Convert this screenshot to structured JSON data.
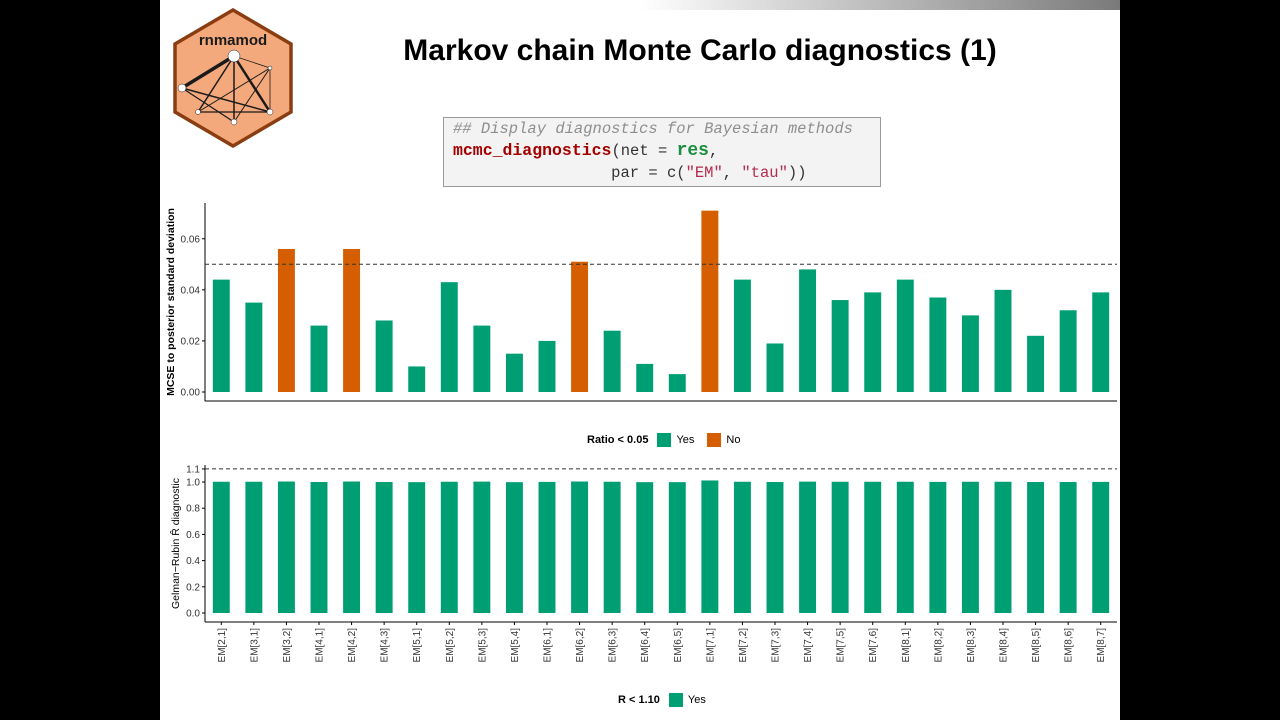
{
  "slide": {
    "title": "Markov chain Monte Carlo diagnostics (1)",
    "logo_text": "rnmamod"
  },
  "code": {
    "comment": "## Display diagnostics for Bayesian methods",
    "function": "mcmc_diagnostics",
    "open": "(net = ",
    "object": "res",
    "comma": ",",
    "indent": "                 ",
    "par_open": "par = c(",
    "arg1": "\"EM\"",
    "sep": ", ",
    "arg2": "\"tau\"",
    "close": "))"
  },
  "colors": {
    "yes": "#009e73",
    "no": "#d55e00",
    "axis": "#000000",
    "ref_line": "#333333"
  },
  "chart_data": [
    {
      "type": "bar",
      "ylabel": "MCSE to posterior standard deviation",
      "ylim": [
        0,
        0.074
      ],
      "yticks": [
        0.0,
        0.02,
        0.04,
        0.06
      ],
      "ytick_labels": [
        "0.00",
        "0.02",
        "0.04",
        "0.06"
      ],
      "reference_line": 0.05,
      "categories": [
        "EM[2,1]",
        "EM[3,1]",
        "EM[3,2]",
        "EM[4,1]",
        "EM[4,2]",
        "EM[4,3]",
        "EM[5,1]",
        "EM[5,2]",
        "EM[5,3]",
        "EM[5,4]",
        "EM[6,1]",
        "EM[6,2]",
        "EM[6,3]",
        "EM[6,4]",
        "EM[6,5]",
        "EM[7,1]",
        "EM[7,2]",
        "EM[7,3]",
        "EM[7,4]",
        "EM[7,5]",
        "EM[7,6]",
        "EM[8,1]",
        "EM[8,2]",
        "EM[8,3]",
        "EM[8,4]",
        "EM[8,5]",
        "EM[8,6]",
        "EM[8,7]"
      ],
      "values": [
        0.044,
        0.035,
        0.056,
        0.026,
        0.056,
        0.028,
        0.01,
        0.043,
        0.026,
        0.015,
        0.02,
        0.051,
        0.024,
        0.011,
        0.007,
        0.071,
        0.044,
        0.019,
        0.048,
        0.036,
        0.039,
        0.044,
        0.037,
        0.03,
        0.04,
        0.022,
        0.032,
        0.039
      ],
      "groups": [
        "Yes",
        "Yes",
        "No",
        "Yes",
        "No",
        "Yes",
        "Yes",
        "Yes",
        "Yes",
        "Yes",
        "Yes",
        "No",
        "Yes",
        "Yes",
        "Yes",
        "No",
        "Yes",
        "Yes",
        "Yes",
        "Yes",
        "Yes",
        "Yes",
        "Yes",
        "Yes",
        "Yes",
        "Yes",
        "Yes",
        "Yes"
      ],
      "legend": {
        "title": "Ratio < 0.05",
        "items": [
          "Yes",
          "No"
        ],
        "position": "bottom"
      }
    },
    {
      "type": "bar",
      "ylabel": "Gelman−Rubin R̂ diagnostic",
      "ylim": [
        0,
        1.13
      ],
      "yticks": [
        0.0,
        0.2,
        0.4,
        0.6,
        0.8,
        1.0,
        1.1
      ],
      "ytick_labels": [
        "0.0",
        "0.2",
        "0.4",
        "0.6",
        "0.8",
        "1.0",
        "1.1"
      ],
      "reference_line": 1.1,
      "categories": [
        "EM[2,1]",
        "EM[3,1]",
        "EM[3,2]",
        "EM[4,1]",
        "EM[4,2]",
        "EM[4,3]",
        "EM[5,1]",
        "EM[5,2]",
        "EM[5,3]",
        "EM[5,4]",
        "EM[6,1]",
        "EM[6,2]",
        "EM[6,3]",
        "EM[6,4]",
        "EM[6,5]",
        "EM[7,1]",
        "EM[7,2]",
        "EM[7,3]",
        "EM[7,4]",
        "EM[7,5]",
        "EM[7,6]",
        "EM[8,1]",
        "EM[8,2]",
        "EM[8,3]",
        "EM[8,4]",
        "EM[8,5]",
        "EM[8,6]",
        "EM[8,7]"
      ],
      "values": [
        1.002,
        1.002,
        1.004,
        1.0,
        1.004,
        1.0,
        0.999,
        1.002,
        1.003,
        0.999,
        1.001,
        1.004,
        1.002,
        0.999,
        0.999,
        1.012,
        1.002,
        1.0,
        1.003,
        1.002,
        1.002,
        1.002,
        1.001,
        1.002,
        1.002,
        1.0,
        1.0,
        1.001
      ],
      "groups": [
        "Yes",
        "Yes",
        "Yes",
        "Yes",
        "Yes",
        "Yes",
        "Yes",
        "Yes",
        "Yes",
        "Yes",
        "Yes",
        "Yes",
        "Yes",
        "Yes",
        "Yes",
        "Yes",
        "Yes",
        "Yes",
        "Yes",
        "Yes",
        "Yes",
        "Yes",
        "Yes",
        "Yes",
        "Yes",
        "Yes",
        "Yes",
        "Yes"
      ],
      "legend": {
        "title": "R < 1.10",
        "items": [
          "Yes"
        ],
        "position": "bottom"
      }
    }
  ]
}
